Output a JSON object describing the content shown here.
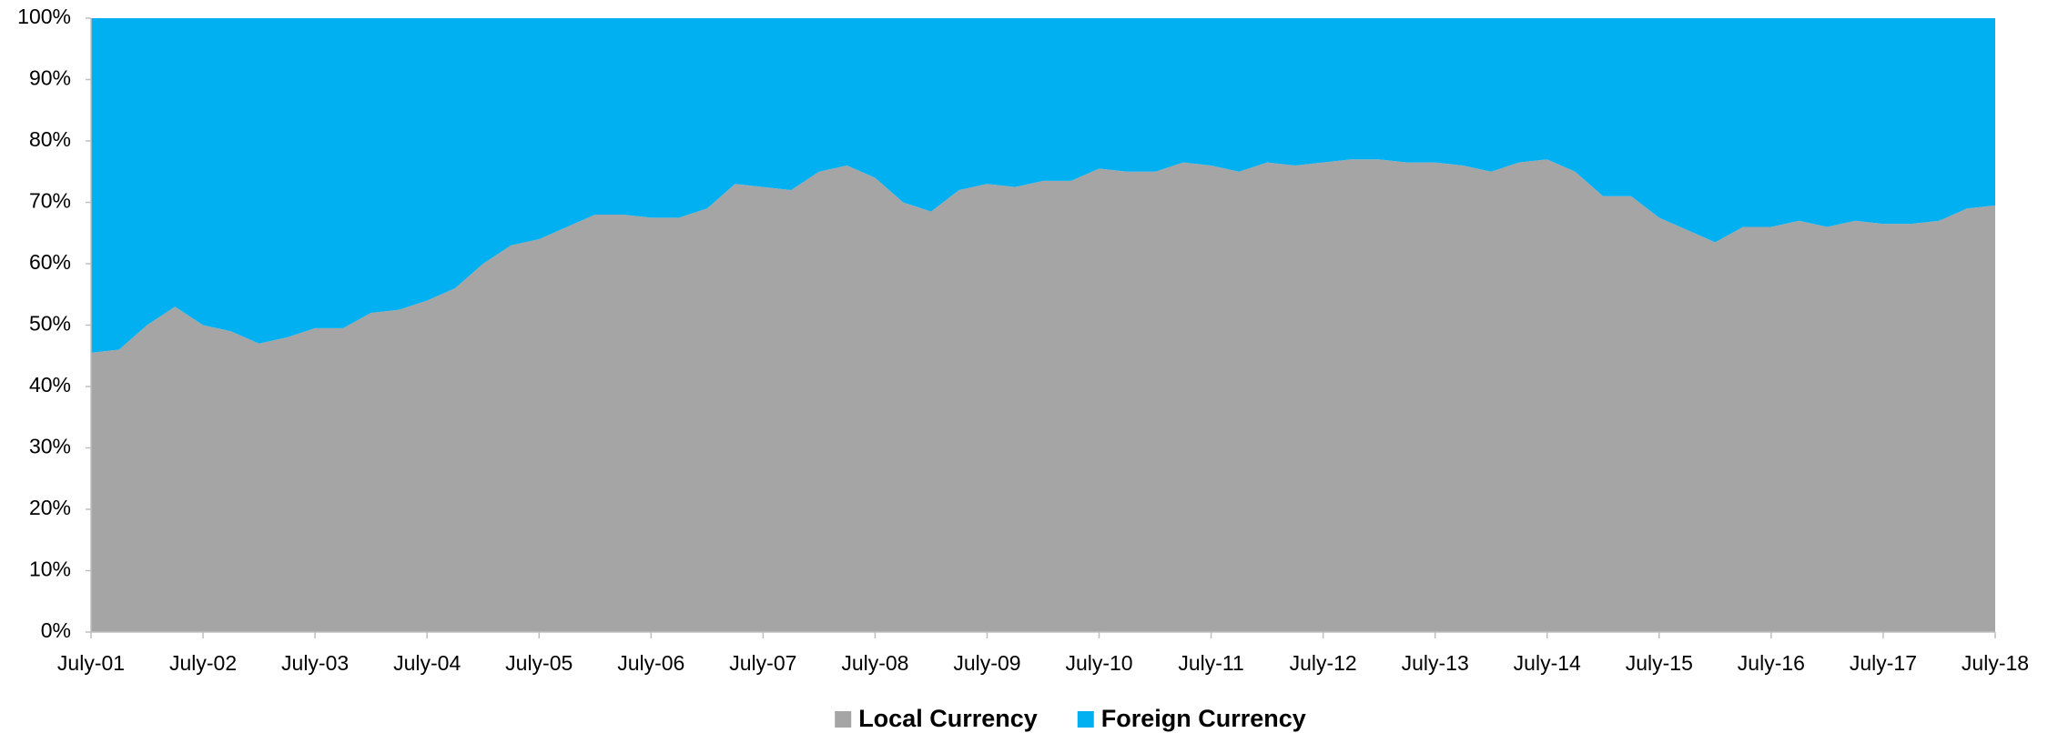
{
  "chart_data": {
    "type": "stacked_area",
    "categories": [
      "July-01",
      null,
      null,
      null,
      "July-02",
      null,
      null,
      null,
      "July-03",
      null,
      null,
      null,
      "July-04",
      null,
      null,
      null,
      "July-05",
      null,
      null,
      null,
      "July-06",
      null,
      null,
      null,
      "July-07",
      null,
      null,
      null,
      "July-08",
      null,
      null,
      null,
      "July-09",
      null,
      null,
      null,
      "July-10",
      null,
      null,
      null,
      "July-11",
      null,
      null,
      null,
      "July-12",
      null,
      null,
      null,
      "July-13",
      null,
      null,
      null,
      "July-14",
      null,
      null,
      null,
      "July-15",
      null,
      null,
      null,
      "July-16",
      null,
      null,
      null,
      "July-17",
      null,
      null,
      null,
      "July-18"
    ],
    "series": [
      {
        "name": "Local Currency",
        "color": "#a5a5a5",
        "values": [
          45.5,
          46,
          50,
          53,
          50,
          49,
          47,
          48,
          49.5,
          49.5,
          52,
          52.5,
          54,
          56,
          60,
          63,
          64,
          66,
          68,
          68,
          67.5,
          67.5,
          69,
          73,
          72.5,
          72,
          75,
          76,
          74,
          70,
          68.5,
          72,
          73,
          72.5,
          73.5,
          73.5,
          75.5,
          75,
          75,
          76.5,
          76,
          75,
          76.5,
          76,
          76.5,
          77,
          77,
          76.5,
          76.5,
          76,
          75,
          76.5,
          77,
          75,
          71,
          71,
          67.5,
          65.5,
          63.5,
          66,
          66,
          67,
          66,
          67,
          66.5,
          66.5,
          67,
          69,
          69.5
        ]
      },
      {
        "name": "Foreign Currency",
        "color": "#00b0f0",
        "values": [
          54.5,
          54,
          50,
          47,
          50,
          51,
          53,
          52,
          50.5,
          50.5,
          48,
          47.5,
          46,
          44,
          40,
          37,
          36,
          34,
          32,
          32,
          32.5,
          32.5,
          31,
          27,
          27.5,
          28,
          25,
          24,
          26,
          30,
          31.5,
          28,
          27,
          27.5,
          26.5,
          26.5,
          24.5,
          25,
          25,
          23.5,
          24,
          25,
          23.5,
          24,
          23.5,
          23,
          23,
          23.5,
          23.5,
          24,
          25,
          23.5,
          23,
          25,
          29,
          29,
          32.5,
          34.5,
          36.5,
          34,
          34,
          33,
          34,
          33,
          33.5,
          33.5,
          33,
          31,
          30.5
        ]
      }
    ],
    "ylim": [
      0,
      100
    ],
    "yticks": [
      {
        "value": 0,
        "label": "0%"
      },
      {
        "value": 10,
        "label": "10%"
      },
      {
        "value": 20,
        "label": "20%"
      },
      {
        "value": 30,
        "label": "30%"
      },
      {
        "value": 40,
        "label": "40%"
      },
      {
        "value": 50,
        "label": "50%"
      },
      {
        "value": 60,
        "label": "60%"
      },
      {
        "value": 70,
        "label": "70%"
      },
      {
        "value": 80,
        "label": "80%"
      },
      {
        "value": 90,
        "label": "90%"
      },
      {
        "value": 100,
        "label": "100%"
      }
    ],
    "grid": false,
    "legend": "bottom"
  }
}
